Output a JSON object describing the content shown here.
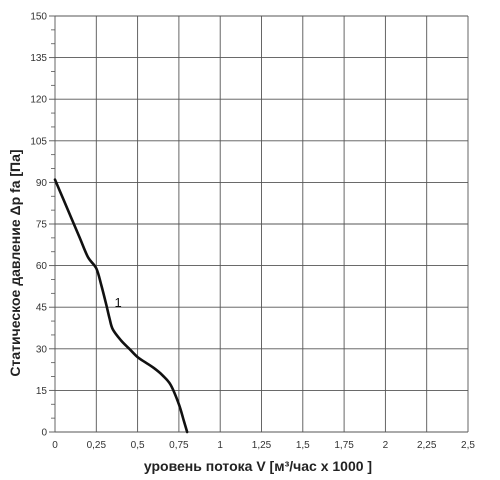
{
  "chart_data": {
    "type": "line",
    "xlabel": "уровень потока  V [м³/час x 1000 ]",
    "ylabel": "Статическое давление  Δp fa [Па]",
    "xlim": [
      0,
      2.5
    ],
    "ylim": [
      0,
      150
    ],
    "x_tick_labels": [
      "0",
      "0,25",
      "0,5",
      "0,75",
      "1",
      "1,25",
      "1,5",
      "1,75",
      "2",
      "2,25",
      "2,5"
    ],
    "x_tick_values": [
      0,
      0.25,
      0.5,
      0.75,
      1,
      1.25,
      1.5,
      1.75,
      2,
      2.25,
      2.5
    ],
    "y_tick_labels": [
      "0",
      "15",
      "30",
      "45",
      "60",
      "75",
      "90",
      "105",
      "120",
      "135",
      "150"
    ],
    "y_tick_values": [
      0,
      15,
      30,
      45,
      60,
      75,
      90,
      105,
      120,
      135,
      150
    ],
    "grid": true,
    "minor_y_ticks_per_major": 3,
    "series": [
      {
        "name": "1",
        "color": "#111111",
        "x": [
          0.0,
          0.05,
          0.1,
          0.15,
          0.2,
          0.25,
          0.28,
          0.31,
          0.33,
          0.35,
          0.4,
          0.45,
          0.5,
          0.55,
          0.6,
          0.65,
          0.7,
          0.75,
          0.78,
          0.8
        ],
        "y": [
          91,
          84,
          77,
          70,
          63,
          59,
          53,
          46,
          41,
          37,
          33,
          30,
          27,
          25,
          23,
          20.5,
          17,
          10,
          4,
          0
        ]
      }
    ]
  }
}
